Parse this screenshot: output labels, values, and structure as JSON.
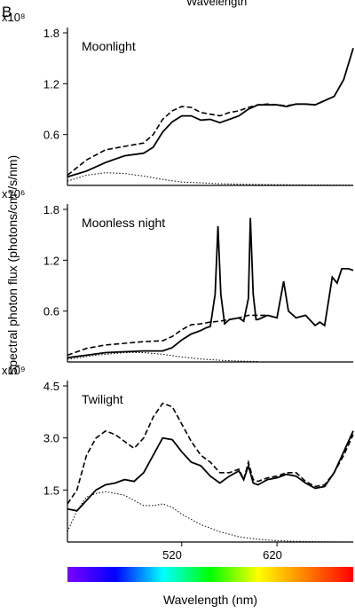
{
  "figure": {
    "panel_letter": "B",
    "top_cut_label": "Wavelength",
    "ylabel": "Spectral photon flux (photons/cm²/s/nm)",
    "xlabel": "Wavelength (nm)",
    "x_tick_labels": [
      "520",
      "620"
    ]
  },
  "colors": {
    "ink": "#000000",
    "spectrum_stops": [
      "#7a00ff",
      "#0000ff",
      "#00ffff",
      "#00ff00",
      "#ffff00",
      "#ff8000",
      "#ff0000"
    ]
  },
  "chart_data": [
    {
      "type": "line",
      "title": "Moonlight",
      "scale_label": "x10⁸",
      "ylim": [
        0,
        1.8
      ],
      "yticks": [
        0.6,
        1.2,
        1.8
      ],
      "ytick_labels": [
        "0.6",
        "1.2",
        "1.8"
      ],
      "xlim": [
        400,
        700
      ],
      "series": [
        {
          "style": "solid",
          "x": [
            400,
            420,
            440,
            460,
            480,
            490,
            500,
            510,
            520,
            530,
            540,
            550,
            560,
            570,
            580,
            590,
            600,
            610,
            620,
            630,
            640,
            650,
            660,
            670,
            680,
            690,
            700
          ],
          "values": [
            0.1,
            0.17,
            0.27,
            0.35,
            0.38,
            0.45,
            0.63,
            0.75,
            0.82,
            0.82,
            0.77,
            0.78,
            0.74,
            0.78,
            0.82,
            0.9,
            0.95,
            0.95,
            0.95,
            0.93,
            0.96,
            0.96,
            0.95,
            1.0,
            1.05,
            1.25,
            1.62
          ]
        },
        {
          "style": "dashed",
          "x": [
            400,
            420,
            440,
            460,
            480,
            490,
            500,
            510,
            520,
            530,
            540,
            550,
            560,
            570,
            580,
            590,
            600,
            610,
            620,
            630,
            640,
            650,
            660,
            670,
            680
          ],
          "values": [
            0.12,
            0.3,
            0.42,
            0.46,
            0.5,
            0.6,
            0.78,
            0.88,
            0.93,
            0.92,
            0.86,
            0.84,
            0.82,
            0.86,
            0.88,
            0.92,
            0.95,
            0.96,
            0.95,
            0.94,
            0.96,
            0.96,
            0.95,
            1.0,
            1.05
          ]
        },
        {
          "style": "dotted",
          "x": [
            400,
            420,
            440,
            460,
            480,
            500,
            520,
            540,
            560,
            580,
            600,
            620,
            640,
            660,
            680,
            700
          ],
          "values": [
            0.05,
            0.12,
            0.15,
            0.14,
            0.11,
            0.07,
            0.04,
            0.03,
            0.02,
            0.015,
            0.01,
            0.008,
            0.006,
            0.005,
            0.004,
            0.003
          ]
        }
      ]
    },
    {
      "type": "line",
      "title": "Moonless night",
      "scale_label": "x10⁶",
      "ylim": [
        0,
        1.8
      ],
      "yticks": [
        0.6,
        1.2,
        1.8
      ],
      "ytick_labels": [
        "0.6",
        "1.2",
        "1.8"
      ],
      "xlim": [
        400,
        700
      ],
      "series": [
        {
          "style": "solid",
          "x": [
            400,
            420,
            440,
            460,
            480,
            500,
            510,
            520,
            530,
            540,
            545,
            550,
            555,
            558,
            561,
            565,
            570,
            580,
            585,
            590,
            592,
            595,
            598,
            600,
            610,
            620,
            627,
            632,
            640,
            650,
            660,
            665,
            670,
            678,
            683,
            688,
            695,
            700
          ],
          "values": [
            0.05,
            0.08,
            0.11,
            0.12,
            0.13,
            0.13,
            0.17,
            0.26,
            0.33,
            0.37,
            0.4,
            0.42,
            0.8,
            1.6,
            0.8,
            0.45,
            0.5,
            0.52,
            0.48,
            0.75,
            1.7,
            0.8,
            0.5,
            0.5,
            0.55,
            0.52,
            0.95,
            0.6,
            0.52,
            0.55,
            0.43,
            0.47,
            0.43,
            1.0,
            0.93,
            1.1,
            1.1,
            1.08
          ]
        },
        {
          "style": "dashed",
          "x": [
            400,
            420,
            440,
            460,
            480,
            500,
            510,
            520,
            530,
            540,
            550,
            560,
            570,
            580,
            590,
            600,
            610,
            620
          ],
          "values": [
            0.08,
            0.16,
            0.2,
            0.22,
            0.24,
            0.25,
            0.3,
            0.38,
            0.44,
            0.45,
            0.47,
            0.48,
            0.5,
            0.52,
            0.55,
            0.55,
            0.55,
            0.52
          ]
        },
        {
          "style": "dotted",
          "x": [
            400,
            430,
            460,
            480,
            500,
            520,
            540,
            560,
            580,
            600
          ],
          "values": [
            0.03,
            0.08,
            0.11,
            0.11,
            0.09,
            0.06,
            0.035,
            0.02,
            0.01,
            0.005
          ]
        }
      ]
    },
    {
      "type": "line",
      "title": "Twilight",
      "scale_label": "x10⁹",
      "ylim": [
        0,
        4.5
      ],
      "yticks": [
        1.5,
        3.0,
        4.5
      ],
      "ytick_labels": [
        "1.5",
        "3.0",
        "4.5"
      ],
      "xlim": [
        400,
        700
      ],
      "series": [
        {
          "style": "solid",
          "x": [
            400,
            410,
            420,
            430,
            440,
            450,
            460,
            470,
            480,
            490,
            500,
            510,
            520,
            530,
            540,
            550,
            560,
            570,
            580,
            585,
            590,
            595,
            600,
            610,
            620,
            630,
            640,
            650,
            660,
            670,
            680,
            690,
            700
          ],
          "values": [
            0.95,
            0.9,
            1.2,
            1.5,
            1.65,
            1.7,
            1.8,
            1.75,
            2.0,
            2.5,
            3.0,
            2.95,
            2.6,
            2.3,
            2.2,
            1.9,
            1.7,
            1.9,
            2.05,
            1.8,
            2.2,
            1.7,
            1.65,
            1.8,
            1.85,
            1.95,
            1.9,
            1.7,
            1.55,
            1.6,
            2.0,
            2.6,
            3.2
          ]
        },
        {
          "style": "dashed",
          "x": [
            400,
            410,
            420,
            430,
            440,
            450,
            460,
            470,
            480,
            490,
            500,
            510,
            520,
            530,
            540,
            550,
            560,
            570,
            580,
            585,
            590,
            595,
            600,
            610,
            620,
            630,
            640,
            650,
            660,
            670,
            680,
            690,
            700
          ],
          "values": [
            1.1,
            1.5,
            2.5,
            3.0,
            3.2,
            3.1,
            2.9,
            2.7,
            3.0,
            3.6,
            4.0,
            3.9,
            3.4,
            2.9,
            2.5,
            2.3,
            2.0,
            2.0,
            2.1,
            1.8,
            2.3,
            1.8,
            1.75,
            1.85,
            1.9,
            2.0,
            2.0,
            1.75,
            1.6,
            1.65,
            2.0,
            2.5,
            3.1
          ]
        },
        {
          "style": "dotted",
          "x": [
            400,
            410,
            420,
            430,
            440,
            450,
            460,
            470,
            480,
            490,
            500,
            510,
            520,
            540,
            560,
            580,
            600,
            620,
            640,
            660,
            680,
            700
          ],
          "values": [
            0.3,
            0.9,
            1.3,
            1.4,
            1.45,
            1.4,
            1.35,
            1.2,
            1.05,
            1.05,
            1.1,
            1.0,
            0.8,
            0.5,
            0.3,
            0.15,
            0.08,
            0.04,
            0.02,
            0.01,
            0.005,
            0.003
          ]
        }
      ]
    }
  ]
}
